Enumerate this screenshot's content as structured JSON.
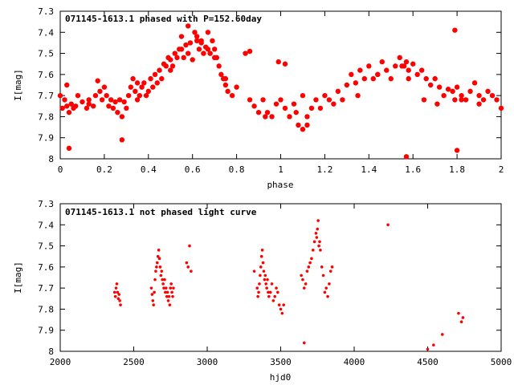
{
  "chart_data": [
    {
      "type": "scatter",
      "title": "071145-1613.1 phased with P=152.60day",
      "xlabel": "phase",
      "ylabel": "I[mag]",
      "xlim": [
        0,
        2
      ],
      "ylim": [
        7.3,
        8.0
      ],
      "y_inverted": true,
      "x_ticks": [
        "0",
        "0.2",
        "0.4",
        "0.6",
        "0.8",
        "1",
        "1.2",
        "1.4",
        "1.6",
        "1.8",
        "2"
      ],
      "y_ticks": [
        "7.3",
        "7.4",
        "7.5",
        "7.6",
        "7.7",
        "7.8",
        "7.9",
        "8"
      ],
      "color": "#ff0000",
      "marker": "filled-circle-large",
      "series": [
        {
          "x": [
            0.0,
            0.01,
            0.02,
            0.03,
            0.03,
            0.04,
            0.05,
            0.06,
            0.07,
            0.08,
            0.1,
            0.12,
            0.13,
            0.15,
            0.16,
            0.17,
            0.18,
            0.19,
            0.2,
            0.21,
            0.22,
            0.23,
            0.24,
            0.25,
            0.26,
            0.27,
            0.28,
            0.29,
            0.3,
            0.31,
            0.32,
            0.33,
            0.34,
            0.35,
            0.36,
            0.37,
            0.38,
            0.39,
            0.4,
            0.41,
            0.42,
            0.43,
            0.44,
            0.45,
            0.46,
            0.47,
            0.48,
            0.49,
            0.5,
            0.51,
            0.52,
            0.53,
            0.54,
            0.55,
            0.56,
            0.57,
            0.58,
            0.59,
            0.6,
            0.61,
            0.62,
            0.63,
            0.64,
            0.65,
            0.66,
            0.67,
            0.68,
            0.69,
            0.7,
            0.71,
            0.72,
            0.73,
            0.74,
            0.75,
            0.76,
            0.78,
            0.8,
            0.84,
            0.86,
            0.88,
            0.9,
            0.92,
            0.94,
            0.96,
            0.98,
            1.0,
            1.02,
            1.04,
            1.06,
            1.08,
            1.1,
            1.12,
            1.14,
            1.16,
            1.18,
            1.2,
            1.22,
            1.24,
            1.26,
            1.28,
            1.3,
            1.32,
            1.34,
            1.36,
            1.38,
            1.4,
            1.42,
            1.44,
            1.46,
            1.48,
            1.5,
            1.52,
            1.54,
            1.56,
            1.57,
            1.58,
            1.6,
            1.62,
            1.64,
            1.66,
            1.68,
            1.7,
            1.72,
            1.74,
            1.76,
            1.78,
            1.79,
            1.8,
            1.82,
            1.84,
            1.86,
            1.88,
            1.9,
            1.92,
            1.94,
            1.96,
            1.98,
            2.0,
            0.04,
            0.28,
            0.55,
            0.58,
            0.62,
            0.67,
            0.86,
            0.99,
            1.02,
            1.1,
            1.55,
            1.57,
            1.79,
            1.8,
            0.13,
            0.35,
            0.5,
            0.64,
            0.7,
            0.75,
            0.93,
            1.07,
            1.12,
            1.35,
            1.44,
            1.58,
            1.65,
            1.71,
            1.82,
            1.9
          ],
          "y": [
            7.7,
            7.76,
            7.72,
            7.65,
            7.75,
            7.78,
            7.74,
            7.76,
            7.75,
            7.7,
            7.73,
            7.76,
            7.72,
            7.75,
            7.7,
            7.63,
            7.68,
            7.72,
            7.66,
            7.7,
            7.75,
            7.72,
            7.76,
            7.73,
            7.78,
            7.72,
            7.8,
            7.73,
            7.76,
            7.7,
            7.66,
            7.62,
            7.68,
            7.72,
            7.7,
            7.66,
            7.64,
            7.7,
            7.68,
            7.62,
            7.66,
            7.6,
            7.64,
            7.58,
            7.62,
            7.55,
            7.56,
            7.52,
            7.53,
            7.56,
            7.5,
            7.52,
            7.48,
            7.42,
            7.52,
            7.46,
            7.5,
            7.45,
            7.53,
            7.4,
            7.44,
            7.48,
            7.45,
            7.5,
            7.47,
            7.48,
            7.5,
            7.44,
            7.48,
            7.52,
            7.56,
            7.6,
            7.62,
            7.65,
            7.68,
            7.7,
            7.66,
            7.5,
            7.72,
            7.75,
            7.78,
            7.72,
            7.78,
            7.8,
            7.74,
            7.72,
            7.76,
            7.8,
            7.74,
            7.84,
            7.7,
            7.8,
            7.76,
            7.72,
            7.76,
            7.7,
            7.72,
            7.74,
            7.68,
            7.72,
            7.65,
            7.6,
            7.64,
            7.58,
            7.62,
            7.56,
            7.62,
            7.6,
            7.54,
            7.58,
            7.62,
            7.56,
            7.52,
            7.56,
            7.54,
            7.58,
            7.55,
            7.6,
            7.58,
            7.62,
            7.65,
            7.62,
            7.66,
            7.7,
            7.67,
            7.68,
            7.72,
            7.66,
            7.7,
            7.72,
            7.68,
            7.64,
            7.7,
            7.72,
            7.68,
            7.7,
            7.72,
            7.76,
            7.95,
            7.91,
            7.48,
            7.37,
            7.42,
            7.4,
            7.49,
            7.54,
            7.55,
            7.86,
            7.56,
            7.99,
            7.39,
            7.96,
            7.74,
            7.64,
            7.58,
            7.44,
            7.52,
            7.62,
            7.8,
            7.78,
            7.84,
            7.7,
            7.6,
            7.62,
            7.72,
            7.74,
            7.72,
            7.74
          ]
        }
      ]
    },
    {
      "type": "scatter",
      "title": "071145-1613.1 not phased light curve",
      "xlabel": "hjd0",
      "ylabel": "I[mag]",
      "xlim": [
        2000,
        5000
      ],
      "ylim": [
        7.3,
        8.0
      ],
      "y_inverted": true,
      "x_ticks": [
        "2000",
        "2500",
        "3000",
        "3500",
        "4000",
        "4500",
        "5000"
      ],
      "y_ticks": [
        "7.3",
        "7.4",
        "7.5",
        "7.6",
        "7.7",
        "7.8",
        "7.9",
        "8"
      ],
      "color": "#ff0000",
      "marker": "filled-circle-small",
      "series": [
        {
          "x": [
            2370,
            2375,
            2380,
            2385,
            2390,
            2395,
            2400,
            2405,
            2410,
            2620,
            2625,
            2630,
            2635,
            2640,
            2645,
            2650,
            2655,
            2660,
            2665,
            2670,
            2675,
            2680,
            2685,
            2690,
            2695,
            2700,
            2705,
            2710,
            2715,
            2720,
            2725,
            2730,
            2735,
            2740,
            2745,
            2750,
            2755,
            2760,
            2765,
            2770,
            2860,
            2870,
            2880,
            2890,
            3320,
            3340,
            3345,
            3350,
            3355,
            3360,
            3365,
            3370,
            3375,
            3380,
            3385,
            3390,
            3395,
            3400,
            3405,
            3410,
            3415,
            3420,
            3430,
            3440,
            3450,
            3460,
            3470,
            3480,
            3490,
            3500,
            3510,
            3520,
            3640,
            3650,
            3660,
            3670,
            3680,
            3690,
            3700,
            3710,
            3720,
            3730,
            3740,
            3745,
            3750,
            3755,
            3760,
            3765,
            3770,
            3780,
            3790,
            3800,
            3810,
            3820,
            3830,
            3840,
            3850,
            4230,
            3660,
            4500,
            4540,
            4600,
            4710,
            4730,
            4740
          ],
          "y": [
            7.72,
            7.74,
            7.7,
            7.68,
            7.72,
            7.75,
            7.73,
            7.76,
            7.78,
            7.7,
            7.73,
            7.76,
            7.78,
            7.72,
            7.66,
            7.62,
            7.6,
            7.58,
            7.55,
            7.52,
            7.56,
            7.6,
            7.64,
            7.62,
            7.66,
            7.68,
            7.7,
            7.66,
            7.72,
            7.7,
            7.74,
            7.72,
            7.76,
            7.74,
            7.78,
            7.7,
            7.68,
            7.72,
            7.74,
            7.7,
            7.58,
            7.6,
            7.5,
            7.62,
            7.62,
            7.7,
            7.74,
            7.72,
            7.68,
            7.64,
            7.6,
            7.55,
            7.52,
            7.58,
            7.62,
            7.66,
            7.64,
            7.68,
            7.7,
            7.66,
            7.72,
            7.74,
            7.72,
            7.68,
            7.76,
            7.74,
            7.7,
            7.72,
            7.78,
            7.8,
            7.82,
            7.78,
            7.64,
            7.66,
            7.7,
            7.68,
            7.62,
            7.6,
            7.58,
            7.56,
            7.52,
            7.48,
            7.44,
            7.46,
            7.42,
            7.38,
            7.5,
            7.48,
            7.52,
            7.6,
            7.64,
            7.72,
            7.7,
            7.74,
            7.68,
            7.62,
            7.6,
            7.4,
            7.96,
            7.99,
            7.97,
            7.92,
            7.82,
            7.86,
            7.84
          ]
        }
      ]
    }
  ]
}
